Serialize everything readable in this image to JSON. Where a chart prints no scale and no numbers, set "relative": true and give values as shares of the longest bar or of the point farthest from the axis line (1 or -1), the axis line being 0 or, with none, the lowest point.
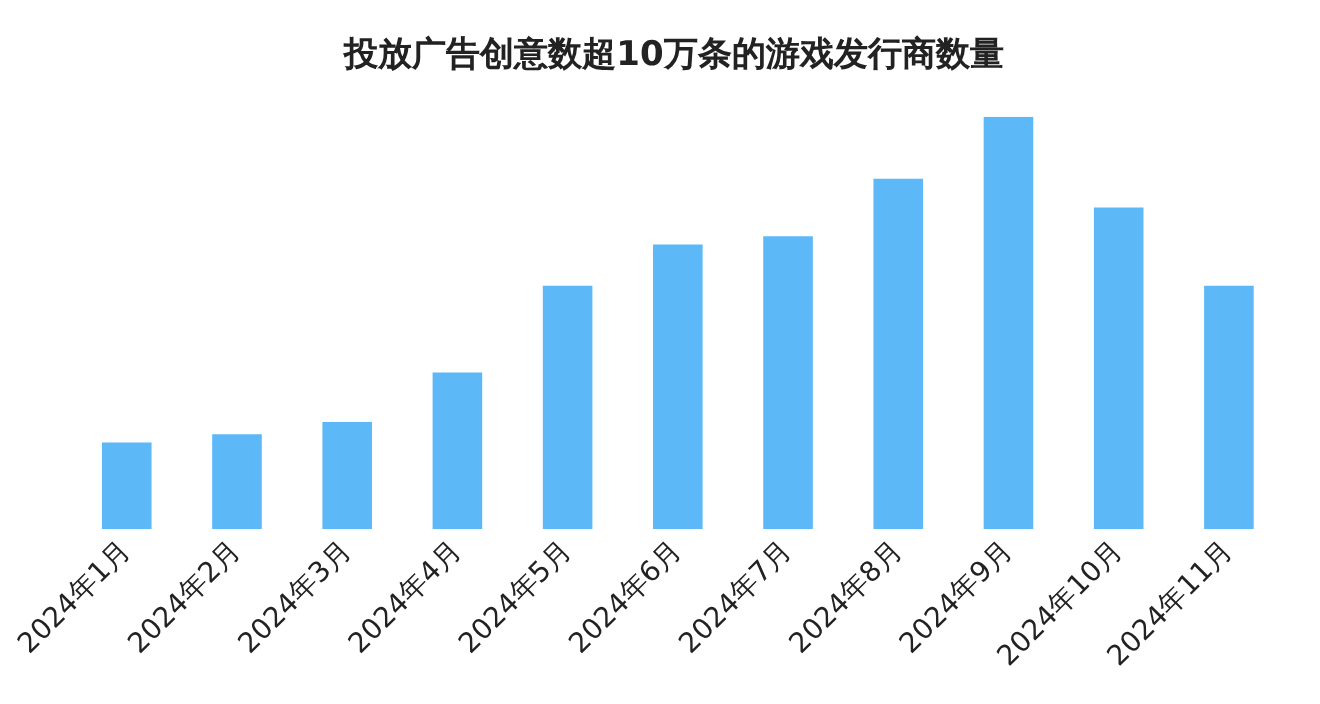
{
  "chart_data": {
    "type": "bar",
    "title": "投放广告创意数超10万条的游戏发行商数量",
    "relative": true,
    "categories": [
      "2024年1月",
      "2024年2月",
      "2024年3月",
      "2024年4月",
      "2024年5月",
      "2024年6月",
      "2024年7月",
      "2024年8月",
      "2024年9月",
      "2024年10月",
      "2024年11月"
    ],
    "values": [
      0.21,
      0.23,
      0.26,
      0.38,
      0.59,
      0.69,
      0.71,
      0.85,
      1,
      0.78,
      0.59
    ],
    "color": "#5cb8f7",
    "grid": false,
    "legend": false
  }
}
